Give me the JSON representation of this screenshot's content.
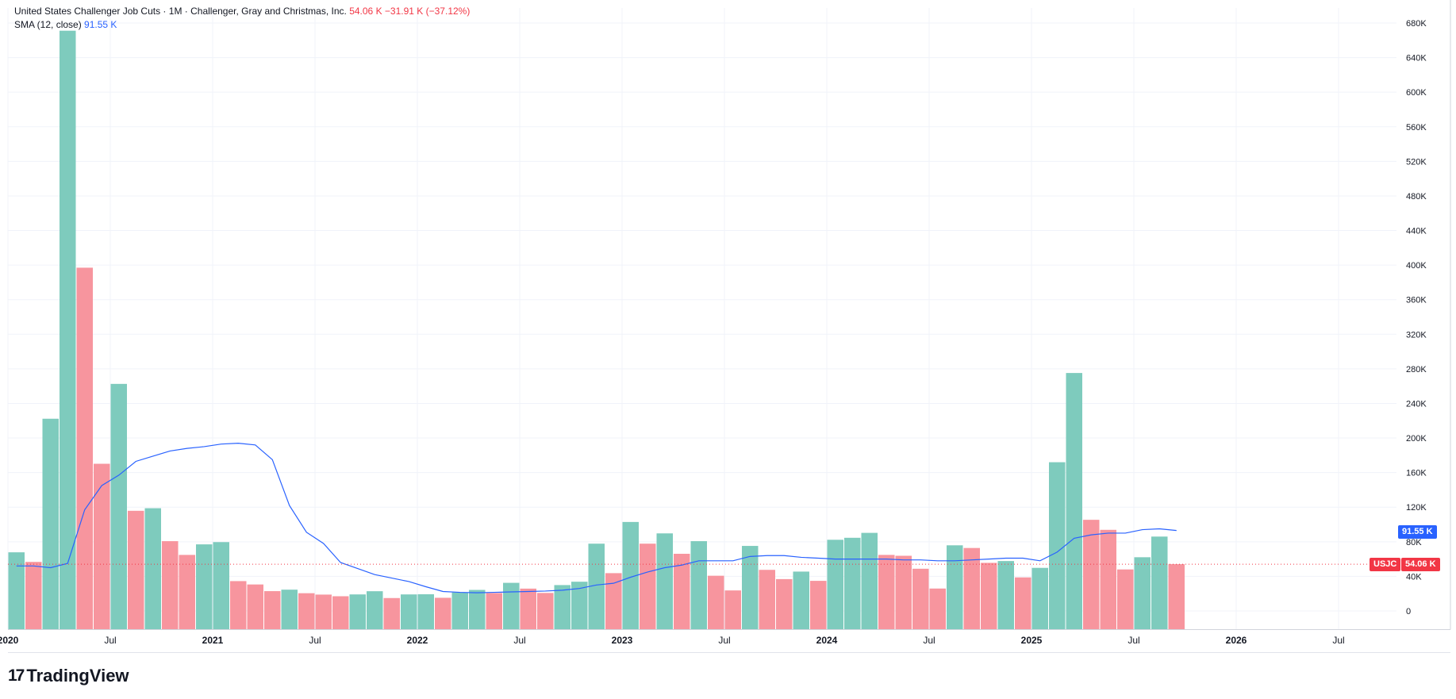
{
  "header": {
    "title": "United States Challenger Job Cuts · 1M · Challenger, Gray and Christmas, Inc.",
    "value": "54.06 K",
    "change": "−31.91 K (−37.12%)",
    "sma_label": "SMA (12, close)",
    "sma_value": "91.55 K"
  },
  "tags": {
    "symbol": "USJC",
    "last": "54.06 K",
    "sma": "91.55 K"
  },
  "brand": {
    "name": "TradingView"
  },
  "colors": {
    "up": "#26a69a",
    "down": "#f23645",
    "sma": "#2962ff"
  },
  "chart_data": {
    "type": "bar",
    "ylim": [
      -22000,
      695000
    ],
    "yticks": [
      0,
      40000,
      80000,
      120000,
      160000,
      200000,
      240000,
      280000,
      320000,
      360000,
      400000,
      440000,
      480000,
      520000,
      560000,
      600000,
      640000,
      680000
    ],
    "ytick_labels": [
      "0",
      "40K",
      "80K",
      "120K",
      "160K",
      "200K",
      "240K",
      "280K",
      "320K",
      "360K",
      "400K",
      "440K",
      "480K",
      "520K",
      "560K",
      "600K",
      "640K",
      "680K"
    ],
    "xlabels": [
      {
        "label": "2020",
        "month": 0,
        "bold": true
      },
      {
        "label": "Jul",
        "month": 6,
        "bold": false
      },
      {
        "label": "2021",
        "month": 12,
        "bold": true
      },
      {
        "label": "Jul",
        "month": 18,
        "bold": false
      },
      {
        "label": "2022",
        "month": 24,
        "bold": true
      },
      {
        "label": "Jul",
        "month": 30,
        "bold": false
      },
      {
        "label": "2023",
        "month": 36,
        "bold": true
      },
      {
        "label": "Jul",
        "month": 42,
        "bold": false
      },
      {
        "label": "2024",
        "month": 48,
        "bold": true
      },
      {
        "label": "Jul",
        "month": 54,
        "bold": false
      },
      {
        "label": "2025",
        "month": 60,
        "bold": true
      },
      {
        "label": "Jul",
        "month": 66,
        "bold": false
      },
      {
        "label": "2026",
        "month": 72,
        "bold": true
      },
      {
        "label": "Jul",
        "month": 78,
        "bold": false
      }
    ],
    "start": "2020-01",
    "values": [
      67800,
      56700,
      222300,
      671100,
      397000,
      170200,
      262600,
      115800,
      118800,
      80700,
      64800,
      77000,
      79600,
      34500,
      30600,
      22900,
      24600,
      20500,
      18900,
      17000,
      19100,
      22800,
      14900,
      19100,
      19300,
      15200,
      21400,
      24300,
      20700,
      32500,
      25800,
      20800,
      29900,
      33800,
      77800,
      43700,
      102900,
      77800,
      89700,
      66100,
      80700,
      40700,
      23700,
      75200,
      47500,
      36800,
      45500,
      34800,
      82300,
      84600,
      90300,
      64800,
      63800,
      48800,
      25900,
      75900,
      72800,
      55600,
      57700,
      38800,
      49800,
      172000,
      275200,
      105400,
      93800,
      48000,
      62100,
      86000,
      54100
    ],
    "colors": [
      "up",
      "down",
      "up",
      "up",
      "down",
      "down",
      "up",
      "down",
      "up",
      "down",
      "down",
      "up",
      "up",
      "down",
      "down",
      "down",
      "up",
      "down",
      "down",
      "down",
      "up",
      "up",
      "down",
      "up",
      "up",
      "down",
      "up",
      "up",
      "down",
      "up",
      "down",
      "down",
      "up",
      "up",
      "up",
      "down",
      "up",
      "down",
      "up",
      "down",
      "up",
      "down",
      "down",
      "up",
      "down",
      "down",
      "up",
      "down",
      "up",
      "up",
      "up",
      "down",
      "down",
      "down",
      "down",
      "up",
      "down",
      "down",
      "up",
      "down",
      "up",
      "up",
      "up",
      "down",
      "down",
      "down",
      "up",
      "up",
      "down"
    ],
    "sma": [
      52000,
      52000,
      50000,
      55000,
      117000,
      145000,
      157000,
      173000,
      179000,
      185000,
      188000,
      190000,
      193000,
      194000,
      192000,
      175000,
      122000,
      91000,
      78000,
      56000,
      49000,
      42000,
      38000,
      34000,
      28000,
      22500,
      21500,
      21000,
      21500,
      22000,
      22500,
      23000,
      24000,
      26000,
      30000,
      32000,
      39000,
      45000,
      50000,
      53000,
      58000,
      58000,
      58000,
      63000,
      64000,
      64000,
      62000,
      61000,
      60000,
      60000,
      60000,
      60000,
      59000,
      59000,
      58000,
      58000,
      59000,
      60000,
      61000,
      61000,
      58000,
      68000,
      84000,
      88000,
      90000,
      90000,
      94000,
      95000,
      93000
    ],
    "last_value": 54060,
    "sma_last": 91550
  }
}
